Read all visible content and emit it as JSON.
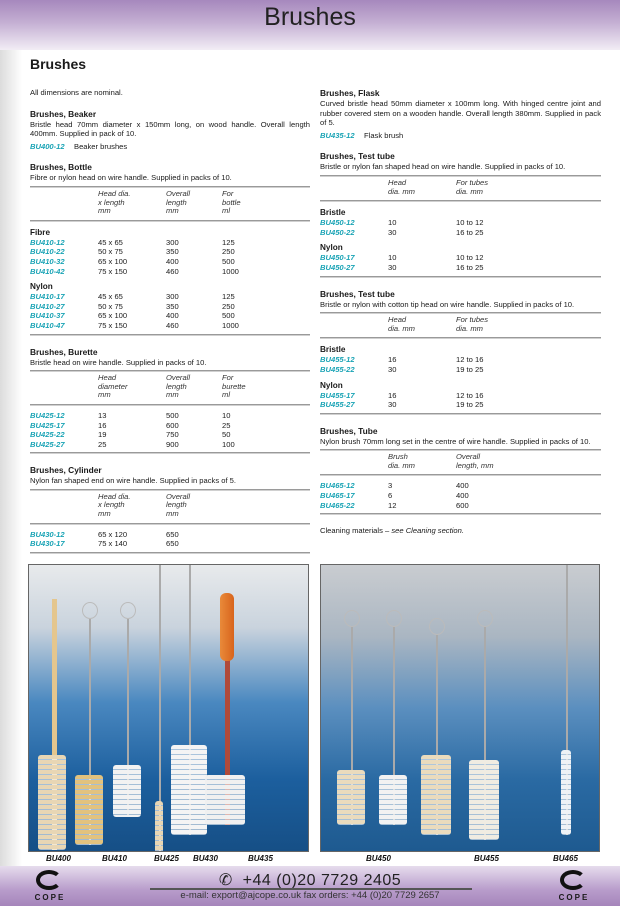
{
  "header": {
    "title": "Brushes"
  },
  "page_heading": "Brushes",
  "note": "All dimensions are nominal.",
  "colors": {
    "code": "#19a3b5",
    "header_band": "#a688bd"
  },
  "left": [
    {
      "title": "Brushes, Beaker",
      "desc": "Bristle head 70mm diameter x 150mm long, on wood handle. Overall length 400mm. Supplied in pack of 10.",
      "code_line": {
        "code": "BU400-12",
        "label": "Beaker brushes"
      }
    },
    {
      "title": "Brushes, Bottle",
      "desc": "Fibre or nylon head on wire handle. Supplied in packs of 10.",
      "table": {
        "headers": [
          "Head dia.\nx length\nmm",
          "Overall\nlength\nmm",
          "For\nbottle\nml"
        ],
        "groups": [
          {
            "label": "Fibre",
            "rows": [
              [
                "BU410-12",
                "45 x 65",
                "300",
                "125"
              ],
              [
                "BU410-22",
                "50 x 75",
                "350",
                "250"
              ],
              [
                "BU410-32",
                "65 x 100",
                "400",
                "500"
              ],
              [
                "BU410-42",
                "75 x 150",
                "460",
                "1000"
              ]
            ]
          },
          {
            "label": "Nylon",
            "rows": [
              [
                "BU410-17",
                "45 x 65",
                "300",
                "125"
              ],
              [
                "BU410-27",
                "50 x 75",
                "350",
                "250"
              ],
              [
                "BU410-37",
                "65 x 100",
                "400",
                "500"
              ],
              [
                "BU410-47",
                "75 x 150",
                "460",
                "1000"
              ]
            ]
          }
        ]
      }
    },
    {
      "title": "Brushes, Burette",
      "desc": "Bristle head on wire handle. Supplied in packs of 10.",
      "table": {
        "headers": [
          "Head\ndiameter\nmm",
          "Overall\nlength\nmm",
          "For\nburette\nml"
        ],
        "groups": [
          {
            "label": "",
            "rows": [
              [
                "BU425-12",
                "13",
                "500",
                "10"
              ],
              [
                "BU425-17",
                "16",
                "600",
                "25"
              ],
              [
                "BU425-22",
                "19",
                "750",
                "50"
              ],
              [
                "BU425-27",
                "25",
                "900",
                "100"
              ]
            ]
          }
        ]
      }
    },
    {
      "title": "Brushes, Cylinder",
      "desc": "Nylon fan shaped end on wire handle. Supplied in packs of 5.",
      "table": {
        "headers": [
          "Head dia.\nx length\nmm",
          "Overall\nlength\nmm"
        ],
        "groups": [
          {
            "label": "",
            "rows": [
              [
                "BU430-12",
                "65 x 120",
                "650"
              ],
              [
                "BU430-17",
                "75 x 140",
                "650"
              ]
            ]
          }
        ]
      }
    }
  ],
  "right": [
    {
      "title": "Brushes, Flask",
      "desc": "Curved bristle head 50mm diameter x 100mm long. With hinged centre joint and rubber covered stem on a wooden handle. Overall length 380mm. Supplied in pack of 5.",
      "code_line": {
        "code": "BU435-12",
        "label": "Flask brush"
      }
    },
    {
      "title": "Brushes, Test tube",
      "desc": "Bristle or nylon fan shaped head on wire handle. Supplied in packs of 10.",
      "table": {
        "headers": [
          "Head\ndia. mm",
          "For tubes\ndia. mm"
        ],
        "groups": [
          {
            "label": "Bristle",
            "rows": [
              [
                "BU450-12",
                "10",
                "10 to 12"
              ],
              [
                "BU450-22",
                "30",
                "16 to 25"
              ]
            ]
          },
          {
            "label": "Nylon",
            "rows": [
              [
                "BU450-17",
                "10",
                "10 to 12"
              ],
              [
                "BU450-27",
                "30",
                "16 to 25"
              ]
            ]
          }
        ]
      }
    },
    {
      "title": "Brushes, Test tube",
      "desc": "Bristle or nylon with cotton tip  head on wire handle. Supplied in packs of 10.",
      "table": {
        "headers": [
          "Head\ndia. mm",
          "For tubes\ndia. mm"
        ],
        "groups": [
          {
            "label": "Bristle",
            "rows": [
              [
                "BU455-12",
                "16",
                "12 to 16"
              ],
              [
                "BU455-22",
                "30",
                "19 to 25"
              ]
            ]
          },
          {
            "label": "Nylon",
            "rows": [
              [
                "BU455-17",
                "16",
                "12 to 16"
              ],
              [
                "BU455-27",
                "30",
                "19 to 25"
              ]
            ]
          }
        ]
      }
    },
    {
      "title": "Brushes, Tube",
      "desc": "Nylon brush 70mm long set in the centre of wire handle. Supplied in packs of 10.",
      "table": {
        "headers": [
          "Brush\ndia. mm",
          "Overall\nlength, mm"
        ],
        "groups": [
          {
            "label": "",
            "rows": [
              [
                "BU465-12",
                "3",
                "400"
              ],
              [
                "BU465-17",
                "6",
                "400"
              ],
              [
                "BU465-22",
                "12",
                "600"
              ]
            ]
          }
        ]
      }
    }
  ],
  "cleaning_note": {
    "prefix": "Cleaning materials – ",
    "italic": "see Cleaning section."
  },
  "photo_labels": {
    "left": [
      "BU400",
      "BU410",
      "BU425",
      "BU430",
      "BU435"
    ],
    "right": [
      "BU450",
      "BU455",
      "BU465"
    ]
  },
  "footer": {
    "phone_icon": "phone-icon",
    "phone": "+44 (0)20 7729 2405",
    "email_line": "e-mail: export@ajcope.co.uk  fax orders: +44 (0)20 7729 2657",
    "logo_text": "COPE"
  }
}
